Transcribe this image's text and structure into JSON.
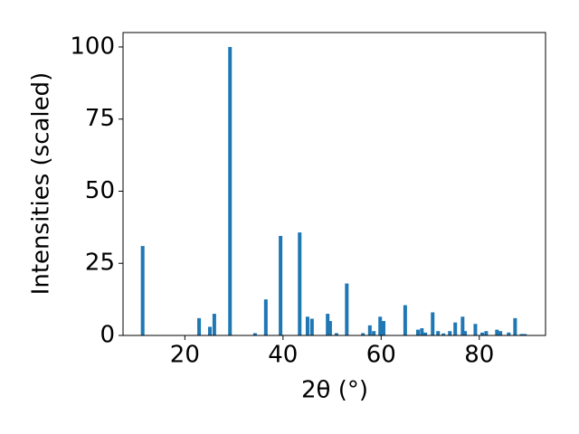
{
  "chart_data": {
    "type": "bar",
    "x_label": "2θ (°)",
    "y_label": "Intensities (scaled)",
    "color": "#1f77b4",
    "x": [
      11.4,
      22.9,
      25.1,
      26.0,
      29.2,
      34.3,
      36.5,
      39.5,
      43.4,
      45.0,
      45.9,
      49.1,
      49.6,
      50.9,
      53.0,
      56.3,
      57.7,
      58.5,
      59.8,
      60.5,
      64.9,
      67.5,
      68.3,
      69.0,
      70.5,
      71.6,
      72.7,
      74.0,
      75.1,
      76.6,
      77.1,
      79.2,
      80.6,
      81.4,
      83.6,
      84.3,
      86.0,
      87.3,
      88.6,
      89.3
    ],
    "values": [
      31,
      6,
      3,
      7.5,
      100,
      0.8,
      12.5,
      34.5,
      35.7,
      6.5,
      5.8,
      7.5,
      5,
      0.8,
      18,
      0.8,
      3.5,
      1.5,
      6.5,
      5,
      10.5,
      2,
      2.5,
      1,
      8,
      1.5,
      0.7,
      1.5,
      4.5,
      6.5,
      1.5,
      4,
      1,
      1.5,
      2,
      1.5,
      1,
      6,
      0.5,
      0.5
    ],
    "xlim": [
      7.4,
      93.5
    ],
    "ylim": [
      0,
      105
    ],
    "xticks": [
      20,
      40,
      60,
      80
    ],
    "yticks": [
      0,
      25,
      50,
      75,
      100
    ]
  }
}
